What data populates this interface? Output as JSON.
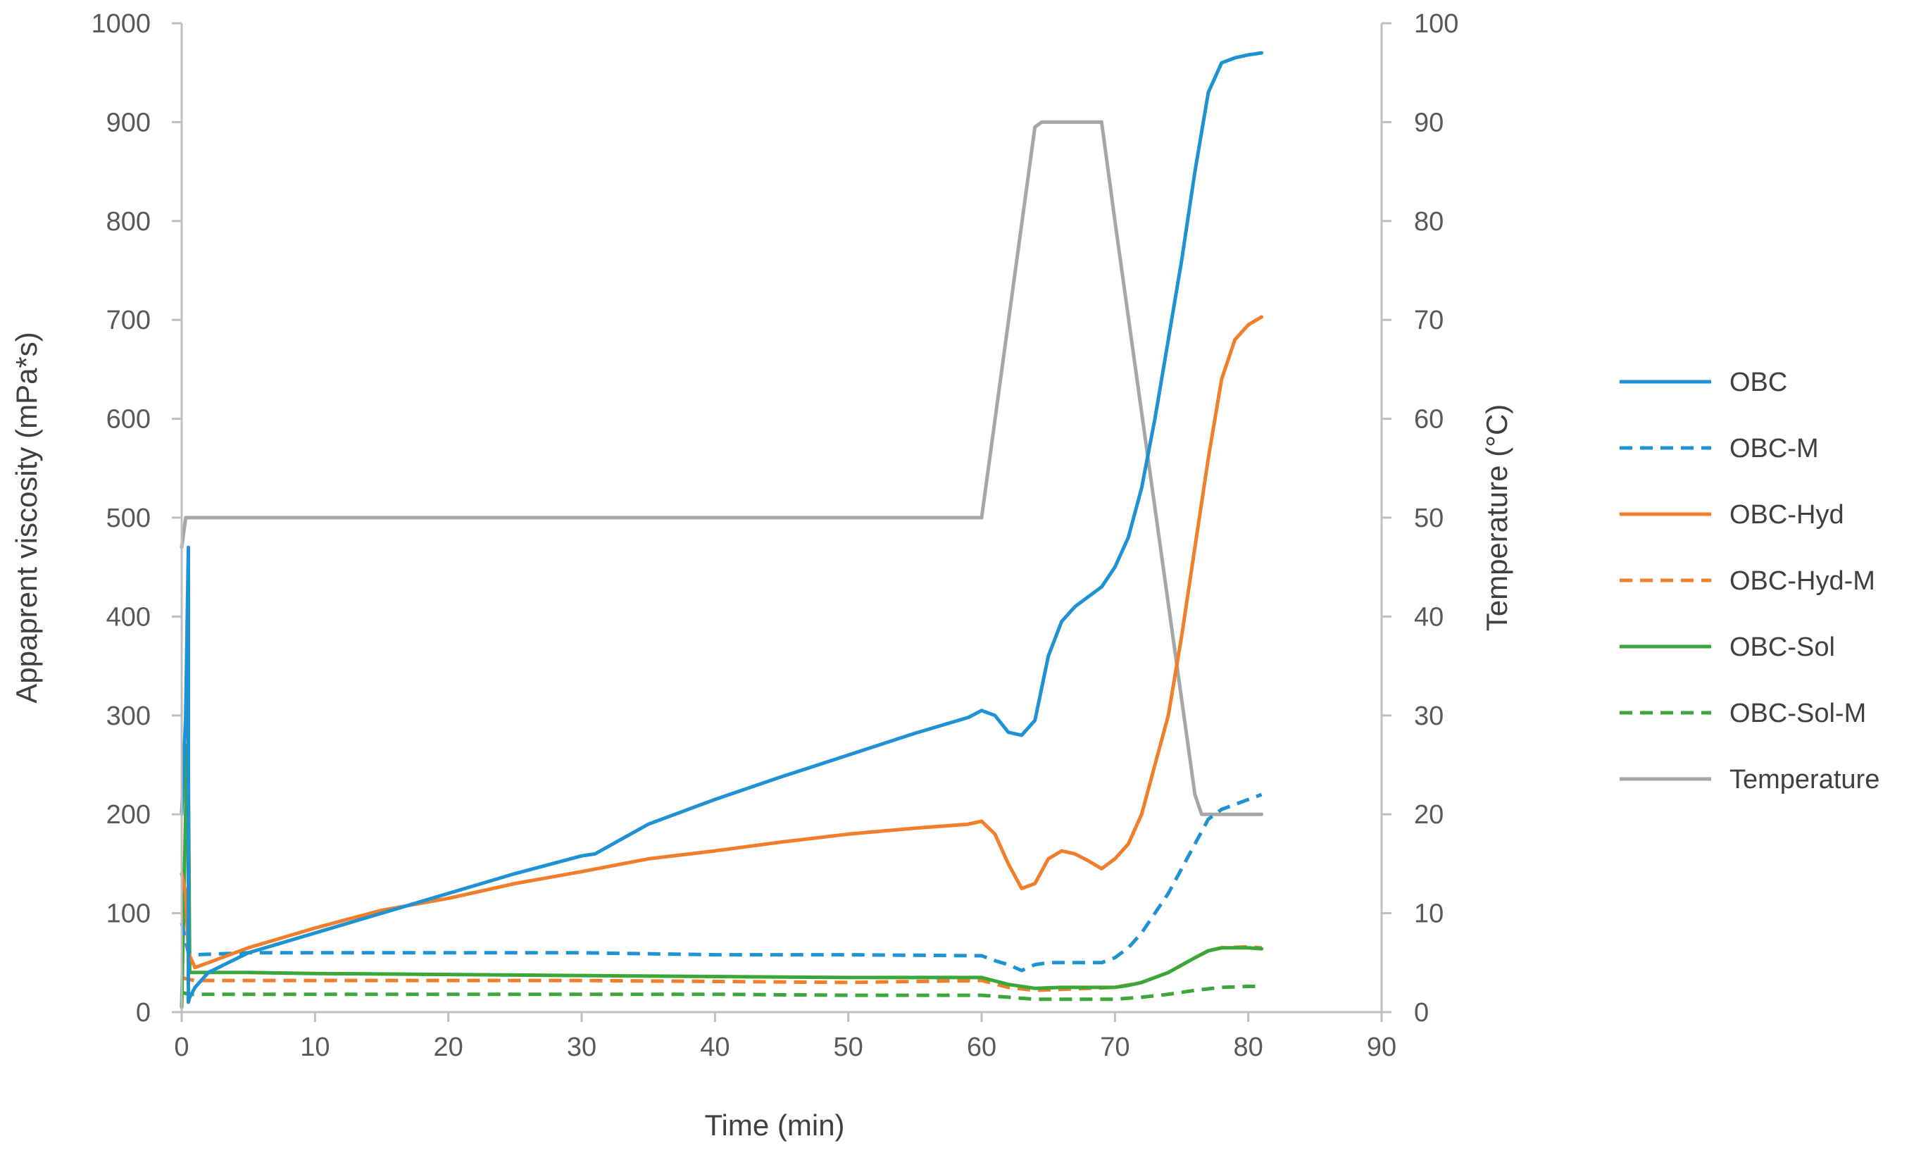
{
  "chart_data": {
    "type": "line",
    "title": "",
    "xlabel": "Time (min)",
    "ylabel": "Appaprent viscosity (mPa*s)",
    "y2label": "Temperature (°C)",
    "xlim": [
      0,
      90
    ],
    "ylim": [
      0,
      1000
    ],
    "y2lim": [
      0,
      100
    ],
    "xticks": [
      "0",
      "10",
      "20",
      "30",
      "40",
      "50",
      "60",
      "70",
      "80",
      "90"
    ],
    "yticks": [
      "0",
      "100",
      "200",
      "300",
      "400",
      "500",
      "600",
      "700",
      "800",
      "900",
      "1000"
    ],
    "y2ticks": [
      "0",
      "10",
      "20",
      "30",
      "40",
      "50",
      "60",
      "70",
      "80",
      "90",
      "100"
    ],
    "grid": false,
    "legend_position": "right",
    "series": [
      {
        "name": "OBC",
        "color": "#1f92d4",
        "dash": "solid",
        "axis": "left",
        "x": [
          0,
          0.3,
          0.5,
          0.5,
          0.6,
          1,
          2,
          5,
          10,
          15,
          20,
          25,
          30,
          31,
          35,
          40,
          45,
          50,
          55,
          59,
          60,
          61,
          62,
          63,
          64,
          65,
          66,
          67,
          68,
          69,
          70,
          71,
          72,
          73,
          74,
          75,
          76,
          77,
          78,
          79,
          80,
          81
        ],
        "y": [
          200,
          300,
          470,
          10,
          15,
          25,
          40,
          60,
          80,
          100,
          120,
          140,
          158,
          160,
          190,
          215,
          238,
          260,
          282,
          298,
          305,
          300,
          283,
          280,
          295,
          360,
          395,
          410,
          420,
          430,
          450,
          480,
          530,
          600,
          680,
          760,
          850,
          930,
          960,
          965,
          968,
          970
        ]
      },
      {
        "name": "OBC-M",
        "color": "#1f92d4",
        "dash": "dashed",
        "axis": "left",
        "x": [
          0,
          0.5,
          1,
          5,
          10,
          20,
          30,
          40,
          50,
          60,
          61,
          62,
          63,
          64,
          65,
          66,
          67,
          68,
          69,
          70,
          71,
          72,
          73,
          74,
          75,
          76,
          77,
          78,
          79,
          80,
          81
        ],
        "y": [
          90,
          60,
          58,
          60,
          60,
          60,
          60,
          58,
          58,
          57,
          52,
          48,
          42,
          48,
          50,
          50,
          50,
          50,
          50,
          55,
          65,
          80,
          100,
          120,
          145,
          170,
          195,
          205,
          210,
          215,
          220
        ]
      },
      {
        "name": "OBC-Hyd",
        "color": "#f07e2b",
        "dash": "solid",
        "axis": "left",
        "x": [
          0,
          0.3,
          0.5,
          1,
          2,
          5,
          10,
          15,
          20,
          25,
          30,
          35,
          40,
          45,
          50,
          55,
          59,
          60,
          61,
          62,
          63,
          64,
          65,
          66,
          67,
          68,
          69,
          70,
          71,
          72,
          73,
          74,
          75,
          76,
          77,
          78,
          79,
          80,
          81
        ],
        "y": [
          140,
          120,
          60,
          45,
          50,
          65,
          85,
          103,
          115,
          130,
          142,
          155,
          163,
          172,
          180,
          186,
          190,
          193,
          180,
          150,
          125,
          130,
          155,
          163,
          160,
          153,
          145,
          155,
          170,
          200,
          250,
          300,
          380,
          470,
          560,
          640,
          680,
          695,
          703
        ]
      },
      {
        "name": "OBC-Hyd-M",
        "color": "#f07e2b",
        "dash": "dashed",
        "axis": "left",
        "x": [
          0,
          0.5,
          1,
          10,
          20,
          30,
          40,
          50,
          60,
          62,
          64,
          66,
          68,
          70,
          72,
          74,
          76,
          77,
          78,
          80,
          81
        ],
        "y": [
          35,
          33,
          32,
          32,
          32,
          32,
          31,
          30,
          32,
          25,
          22,
          23,
          24,
          25,
          30,
          40,
          55,
          62,
          65,
          66,
          65
        ]
      },
      {
        "name": "OBC-Sol",
        "color": "#3ba738",
        "dash": "solid",
        "axis": "left",
        "x": [
          0,
          0.4,
          0.5,
          0.6,
          1,
          5,
          10,
          20,
          30,
          40,
          50,
          60,
          62,
          64,
          66,
          68,
          70,
          71,
          72,
          74,
          76,
          77,
          78,
          80,
          81
        ],
        "y": [
          5,
          270,
          240,
          40,
          40,
          40,
          39,
          38,
          37,
          36,
          35,
          35,
          28,
          24,
          25,
          25,
          25,
          27,
          30,
          40,
          55,
          62,
          65,
          65,
          64
        ]
      },
      {
        "name": "OBC-Sol-M",
        "color": "#3ba738",
        "dash": "dashed",
        "axis": "left",
        "x": [
          0,
          0.5,
          1,
          10,
          20,
          30,
          40,
          50,
          60,
          62,
          64,
          66,
          68,
          70,
          72,
          74,
          76,
          78,
          80,
          81
        ],
        "y": [
          20,
          18,
          18,
          18,
          18,
          18,
          18,
          17,
          17,
          15,
          13,
          13,
          13,
          13,
          15,
          18,
          22,
          25,
          26,
          26
        ]
      },
      {
        "name": "Temperature",
        "color": "#a6a6a6",
        "dash": "solid",
        "axis": "right",
        "x": [
          0,
          0.3,
          0.6,
          5,
          10,
          20,
          30,
          40,
          50,
          60,
          64,
          64.5,
          69,
          70,
          76,
          76.5,
          81
        ],
        "y": [
          47,
          50,
          50,
          50,
          50,
          50,
          50,
          50,
          50,
          50,
          89.5,
          90,
          90,
          80,
          22,
          20,
          20
        ]
      }
    ]
  }
}
